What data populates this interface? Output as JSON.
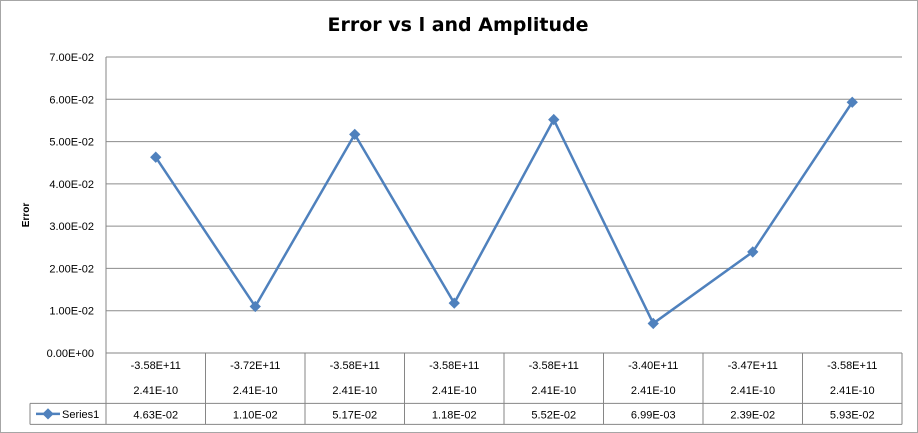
{
  "chart_data": {
    "type": "line",
    "title": "Error vs l and Amplitude",
    "ylabel": "Error",
    "xlabel": "",
    "ylim": [
      0,
      0.07
    ],
    "y_ticks": [
      "0.00E+00",
      "1.00E-02",
      "2.00E-02",
      "3.00E-02",
      "4.00E-02",
      "5.00E-02",
      "6.00E-02",
      "7.00E-02"
    ],
    "grid": true,
    "categories_row1": [
      "-3.58E+11",
      "-3.72E+11",
      "-3.58E+11",
      "-3.58E+11",
      "-3.58E+11",
      "-3.40E+11",
      "-3.47E+11",
      "-3.58E+11"
    ],
    "categories_row2": [
      "2.41E-10",
      "2.41E-10",
      "2.41E-10",
      "2.41E-10",
      "2.41E-10",
      "2.41E-10",
      "2.41E-10",
      "2.41E-10"
    ],
    "series": [
      {
        "name": "Series1",
        "color": "#4f81bd",
        "values": [
          0.0463,
          0.011,
          0.0517,
          0.0118,
          0.0552,
          0.00699,
          0.0239,
          0.0593
        ],
        "value_labels": [
          "4.63E-02",
          "1.10E-02",
          "5.17E-02",
          "1.18E-02",
          "5.52E-02",
          "6.99E-03",
          "2.39E-02",
          "5.93E-02"
        ]
      }
    ]
  }
}
